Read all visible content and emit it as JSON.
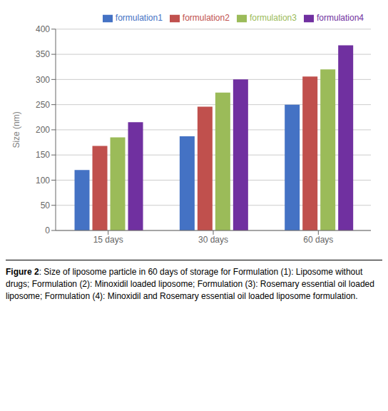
{
  "chart_data": {
    "type": "bar",
    "categories": [
      "15 days",
      "30 days",
      "60 days"
    ],
    "series": [
      {
        "name": "formulation1",
        "color": "#4472C4",
        "values": [
          120,
          187,
          250
        ]
      },
      {
        "name": "formulation2",
        "color": "#C0504D",
        "values": [
          168,
          246,
          306
        ]
      },
      {
        "name": "formulation3",
        "color": "#9BBB59",
        "values": [
          185,
          274,
          320
        ]
      },
      {
        "name": "formulation4",
        "color": "#7030A0",
        "values": [
          215,
          300,
          368
        ]
      }
    ],
    "y_label": "Size (nm)",
    "ylim": [
      0,
      400
    ],
    "yticks": [
      0,
      50,
      100,
      150,
      200,
      250,
      300,
      350,
      400
    ],
    "grid": true,
    "legend": "upper right",
    "annotations": [
      "Figure 2",
      ": Size of liposome particle in 60 days of storage for Formulation (1): Liposome without drugs; Formulation (2): Minoxidil loaded liposome; Formulation (3): Rosemary essential oil loaded liposome; Formulation (4): Minoxidil and Rosemary essential oil loaded liposome formulation."
    ]
  }
}
